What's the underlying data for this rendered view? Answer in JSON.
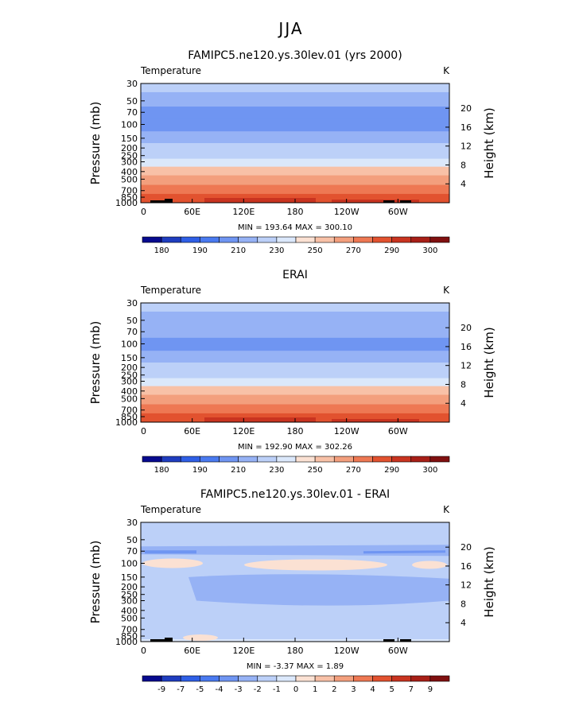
{
  "figure": {
    "title": "JJA"
  },
  "chart_data": [
    {
      "type": "heatmap",
      "title": "FAMIPC5.ne120.ys.30lev.01 (yrs 2000)",
      "subtitle_left": "Temperature",
      "subtitle_right": "K",
      "ylabel": "Pressure (mb)",
      "ylabel_right": "Height (km)",
      "x_ticks": [
        "0",
        "60E",
        "120E",
        "180",
        "120W",
        "60W"
      ],
      "pressure_ticks": [
        "30",
        "50",
        "70",
        "100",
        "150",
        "200",
        "250",
        "300",
        "400",
        "500",
        "700",
        "850",
        "1000"
      ],
      "height_ticks": [
        "20",
        "16",
        "12",
        "8",
        "4"
      ],
      "stats": "MIN = 193.64   MAX = 300.10",
      "colorbar_labels": [
        "180",
        "190",
        "210",
        "230",
        "250",
        "270",
        "290",
        "300"
      ],
      "colorbar_colors": [
        "#070a8e",
        "#1f3dbf",
        "#2f5fe6",
        "#4a7af0",
        "#6f95f2",
        "#96b2f5",
        "#bcd0f8",
        "#dbe8fb",
        "#fbe1d3",
        "#f8c1a7",
        "#f39f7d",
        "#ee7853",
        "#e2522f",
        "#c93420",
        "#a81f17",
        "#801010"
      ],
      "field": "full",
      "pressure_levels": [
        30,
        50,
        70,
        100,
        150,
        200,
        250,
        300,
        400,
        500,
        700,
        850,
        1000
      ],
      "values": [
        226,
        216,
        209,
        201,
        212,
        220,
        227,
        238,
        251,
        260,
        271,
        280,
        288
      ]
    },
    {
      "type": "heatmap",
      "title": "ERAI",
      "subtitle_left": "Temperature",
      "subtitle_right": "K",
      "ylabel": "Pressure (mb)",
      "ylabel_right": "Height (km)",
      "x_ticks": [
        "0",
        "60E",
        "120E",
        "180",
        "120W",
        "60W"
      ],
      "pressure_ticks": [
        "30",
        "50",
        "70",
        "100",
        "150",
        "200",
        "250",
        "300",
        "400",
        "500",
        "700",
        "850",
        "1000"
      ],
      "height_ticks": [
        "20",
        "16",
        "12",
        "8",
        "4"
      ],
      "stats": "MIN = 192.90   MAX = 302.26",
      "colorbar_labels": [
        "180",
        "190",
        "210",
        "230",
        "250",
        "270",
        "290",
        "300"
      ],
      "colorbar_colors": [
        "#070a8e",
        "#1f3dbf",
        "#2f5fe6",
        "#4a7af0",
        "#6f95f2",
        "#96b2f5",
        "#bcd0f8",
        "#dbe8fb",
        "#fbe1d3",
        "#f8c1a7",
        "#f39f7d",
        "#ee7853",
        "#e2522f",
        "#c93420",
        "#a81f17",
        "#801010"
      ],
      "field": "full",
      "pressure_levels": [
        30,
        50,
        70,
        100,
        150,
        200,
        250,
        300,
        400,
        500,
        700,
        850,
        1000
      ],
      "values": [
        227,
        217,
        210,
        201,
        212,
        220,
        227,
        238,
        251,
        260,
        271,
        280,
        289
      ]
    },
    {
      "type": "heatmap",
      "title": "FAMIPC5.ne120.ys.30lev.01 - ERAI",
      "subtitle_left": "Temperature",
      "subtitle_right": "K",
      "ylabel": "Pressure (mb)",
      "ylabel_right": "Height (km)",
      "x_ticks": [
        "0",
        "60E",
        "120E",
        "180",
        "120W",
        "60W"
      ],
      "pressure_ticks": [
        "30",
        "50",
        "70",
        "100",
        "150",
        "200",
        "250",
        "300",
        "400",
        "500",
        "700",
        "850",
        "1000"
      ],
      "height_ticks": [
        "20",
        "16",
        "12",
        "8",
        "4"
      ],
      "stats": "MIN =  -3.37   MAX =    1.89",
      "colorbar_labels": [
        "-9",
        "-7",
        "-5",
        "-4",
        "-3",
        "-2",
        "-1",
        "0",
        "1",
        "2",
        "3",
        "4",
        "5",
        "7",
        "9"
      ],
      "colorbar_colors": [
        "#070a8e",
        "#1f3dbf",
        "#2f5fe6",
        "#4a7af0",
        "#6f95f2",
        "#96b2f5",
        "#bcd0f8",
        "#dbe8fb",
        "#fbe1d3",
        "#f8c1a7",
        "#f39f7d",
        "#ee7853",
        "#e2522f",
        "#c93420",
        "#a81f17",
        "#801010"
      ],
      "field": "diff"
    }
  ]
}
